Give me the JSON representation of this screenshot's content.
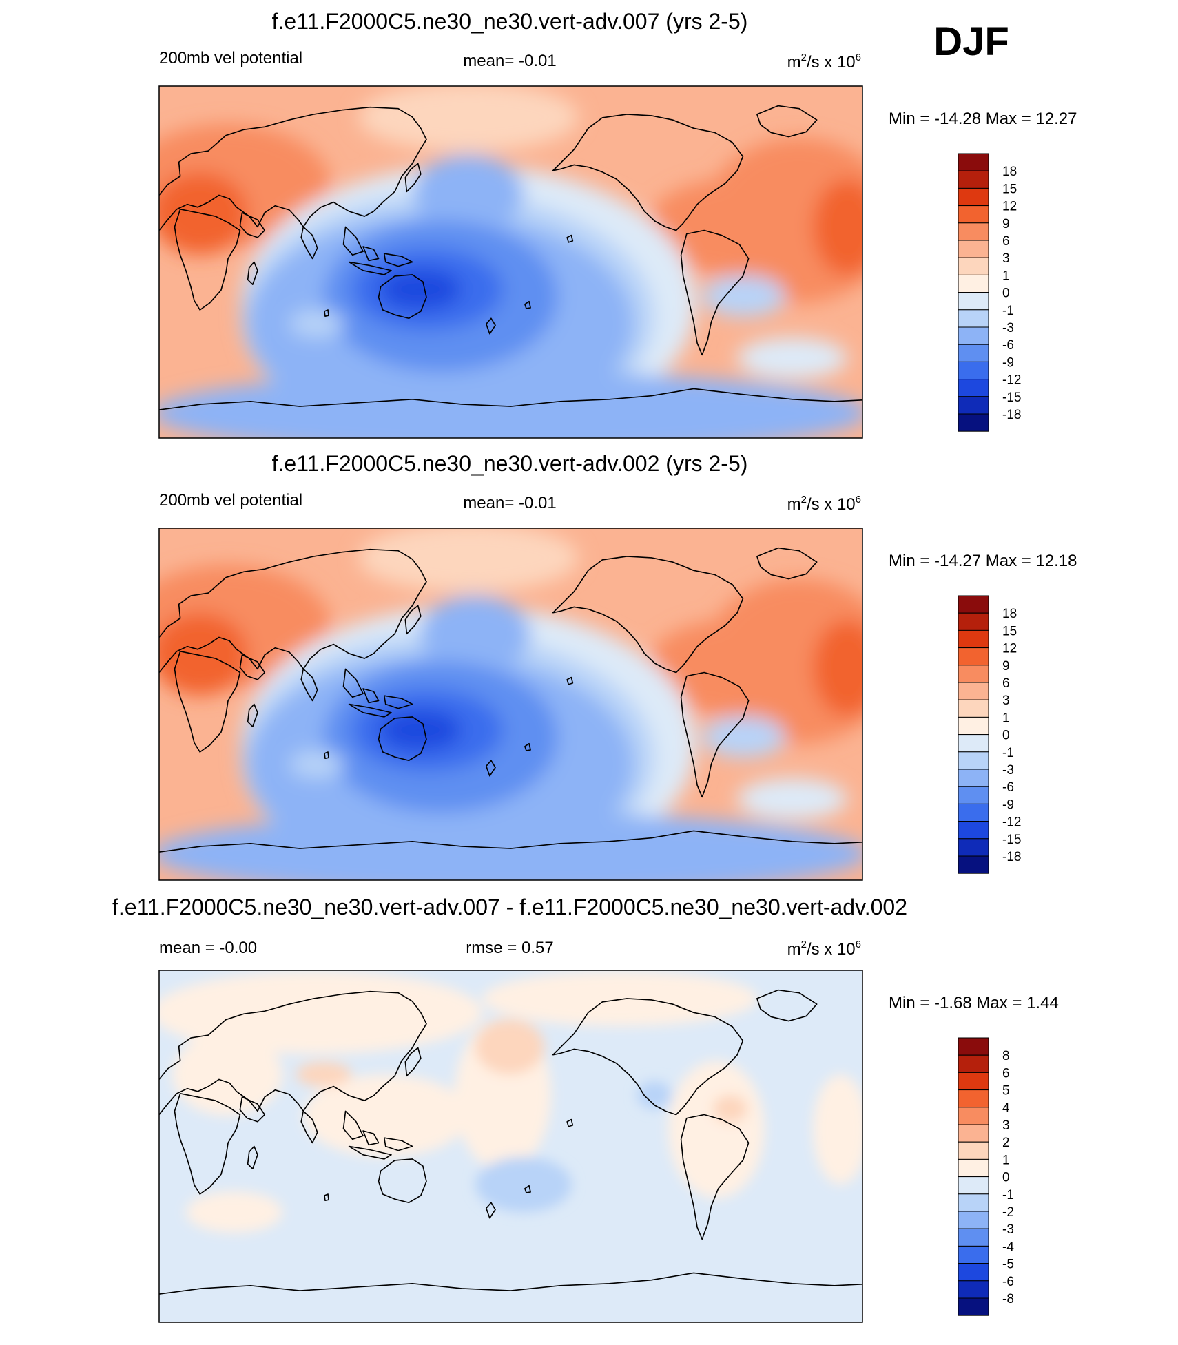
{
  "season": "DJF",
  "chart_data": [
    {
      "type": "contour_map",
      "title": "f.e11.F2000C5.ne30_ne30.vert-adv.007 (yrs 2-5)",
      "left_label": "200mb vel potential",
      "center_label": "mean=  -0.01",
      "units_label": {
        "base": "m",
        "sup1": "2",
        "mid": "/s x 10",
        "sup2": "6"
      },
      "minmax": "Min = -14.28 Max =  12.27",
      "min": -14.28,
      "max": 12.27,
      "colorbar": {
        "labels": [
          "18",
          "15",
          "12",
          "9",
          "6",
          "3",
          "1",
          "0",
          "-1",
          "-3",
          "-6",
          "-9",
          "-12",
          "-15",
          "-18"
        ],
        "colors": [
          "#8a0c0c",
          "#b5200c",
          "#de3910",
          "#f2632f",
          "#f88c60",
          "#fbb392",
          "#fdd6bd",
          "#fff0e3",
          "#ddeaf8",
          "#b8d3f8",
          "#8db3f6",
          "#5f8ff1",
          "#3a6ded",
          "#1d48df",
          "#0f2bb8",
          "#06117f"
        ]
      }
    },
    {
      "type": "contour_map",
      "title": "f.e11.F2000C5.ne30_ne30.vert-adv.002 (yrs 2-5)",
      "left_label": "200mb vel potential",
      "center_label": "mean=  -0.01",
      "units_label": {
        "base": "m",
        "sup1": "2",
        "mid": "/s x 10",
        "sup2": "6"
      },
      "minmax": "Min = -14.27 Max =  12.18",
      "min": -14.27,
      "max": 12.18,
      "colorbar": {
        "labels": [
          "18",
          "15",
          "12",
          "9",
          "6",
          "3",
          "1",
          "0",
          "-1",
          "-3",
          "-6",
          "-9",
          "-12",
          "-15",
          "-18"
        ],
        "colors": [
          "#8a0c0c",
          "#b5200c",
          "#de3910",
          "#f2632f",
          "#f88c60",
          "#fbb392",
          "#fdd6bd",
          "#fff0e3",
          "#ddeaf8",
          "#b8d3f8",
          "#8db3f6",
          "#5f8ff1",
          "#3a6ded",
          "#1d48df",
          "#0f2bb8",
          "#06117f"
        ]
      }
    },
    {
      "type": "contour_map",
      "title": "f.e11.F2000C5.ne30_ne30.vert-adv.007 - f.e11.F2000C5.ne30_ne30.vert-adv.002",
      "left_label": "mean =  -0.00",
      "center_label": "rmse =   0.57",
      "units_label": {
        "base": "m",
        "sup1": "2",
        "mid": "/s x 10",
        "sup2": "6"
      },
      "minmax": "Min =  -1.68 Max =   1.44",
      "min": -1.68,
      "max": 1.44,
      "colorbar": {
        "labels": [
          "8",
          "6",
          "5",
          "4",
          "3",
          "2",
          "1",
          "0",
          "-1",
          "-2",
          "-3",
          "-4",
          "-5",
          "-6",
          "-8"
        ],
        "colors": [
          "#8a0c0c",
          "#b5200c",
          "#de3910",
          "#f2632f",
          "#f88c60",
          "#fbb392",
          "#fdd6bd",
          "#fff0e3",
          "#ddeaf8",
          "#b8d3f8",
          "#8db3f6",
          "#5f8ff1",
          "#3a6ded",
          "#1d48df",
          "#0f2bb8",
          "#06117f"
        ]
      }
    }
  ]
}
